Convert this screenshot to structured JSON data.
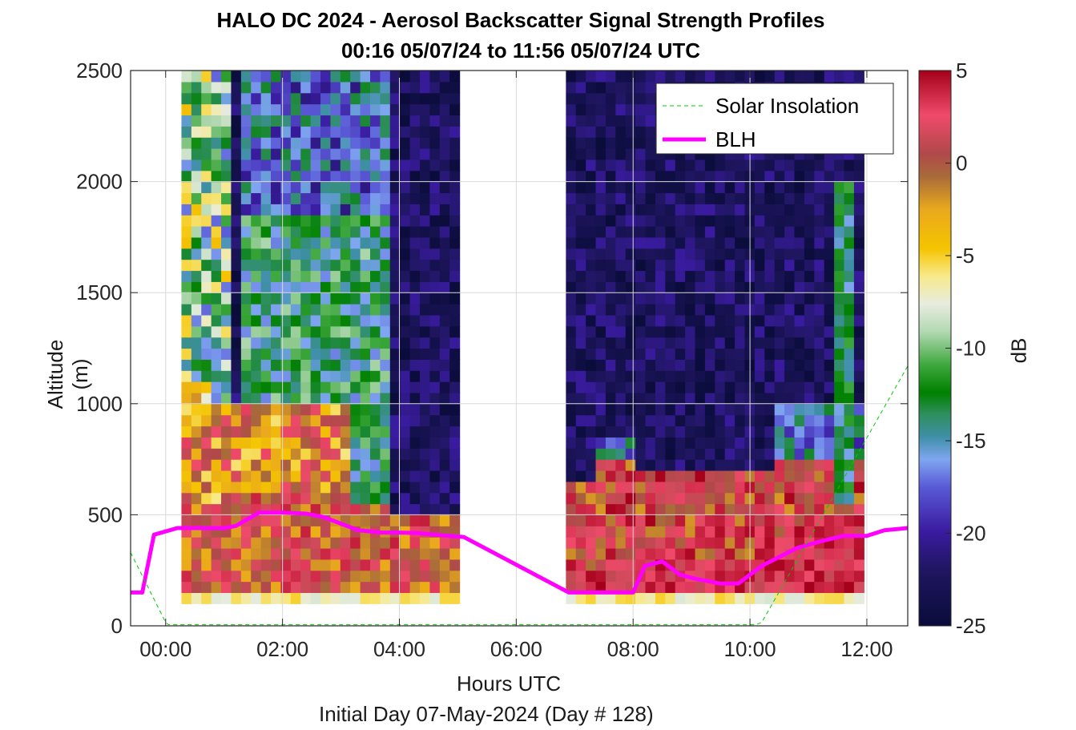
{
  "title_line1": "HALO DC 2024 - Aerosol Backscatter Signal Strength Profiles",
  "title_line2": "00:16 05/07/24 to 11:56 05/07/24  UTC",
  "xlabel": "Hours UTC",
  "footer": "Initial Day 07-May-2024 (Day # 128)",
  "colorbar_label": "dB",
  "chart_data": {
    "type": "heatmap",
    "ylabel": "Altitude (m)",
    "xlim_hours": [
      -0.6,
      12.7
    ],
    "ylim": [
      0,
      2500
    ],
    "x_ticks": [
      {
        "value": 0,
        "label": "00:00"
      },
      {
        "value": 2,
        "label": "02:00"
      },
      {
        "value": 4,
        "label": "04:00"
      },
      {
        "value": 6,
        "label": "06:00"
      },
      {
        "value": 8,
        "label": "08:00"
      },
      {
        "value": 10,
        "label": "10:00"
      },
      {
        "value": 12,
        "label": "12:00"
      }
    ],
    "y_ticks": [
      0,
      500,
      1000,
      1500,
      2000,
      2500
    ],
    "colorbar": {
      "min": -25,
      "max": 5,
      "ticks": [
        5,
        0,
        -5,
        -10,
        -15,
        -20,
        -25
      ],
      "units": "dB"
    },
    "grid": true,
    "legend": {
      "placement": "top-right",
      "entries": [
        {
          "name": "Solar Insolation",
          "color": "#00cc00",
          "style": "dashed"
        },
        {
          "name": "BLH",
          "color": "#ff00ff",
          "style": "solid"
        }
      ]
    },
    "data_segments": [
      {
        "start_hour": 0.27,
        "end_hour": 5.0
      },
      {
        "start_hour": 6.85,
        "end_hour": 11.93
      }
    ],
    "heatmap_altitude_range": [
      100,
      2500
    ],
    "series": [
      {
        "name": "BLH",
        "x_hours": [
          -0.6,
          -0.4,
          -0.2,
          0.2,
          0.6,
          1.0,
          1.2,
          1.6,
          2.0,
          2.4,
          2.7,
          3.0,
          3.3,
          3.7,
          4.0,
          4.3,
          4.6,
          5.1,
          6.9,
          7.4,
          7.8,
          8.0,
          8.2,
          8.5,
          8.8,
          9.1,
          9.5,
          9.8,
          10.2,
          10.5,
          10.8,
          11.2,
          11.6,
          12.0,
          12.3,
          12.7
        ],
        "altitude_m": [
          150,
          150,
          410,
          440,
          440,
          440,
          450,
          510,
          510,
          505,
          490,
          460,
          430,
          420,
          420,
          418,
          410,
          400,
          150,
          150,
          150,
          150,
          270,
          290,
          230,
          210,
          190,
          190,
          270,
          310,
          350,
          380,
          405,
          405,
          430,
          440
        ]
      },
      {
        "name": "Solar Insolation",
        "x_hours": [
          -0.6,
          0.0,
          0.05,
          10.1,
          10.2,
          12.7
        ],
        "altitude_m": [
          330,
          15,
          5,
          5,
          15,
          1170
        ]
      }
    ]
  },
  "colors": {
    "blh": "#ff00ff",
    "solar": "#00cc00",
    "background": "#ffffff"
  }
}
